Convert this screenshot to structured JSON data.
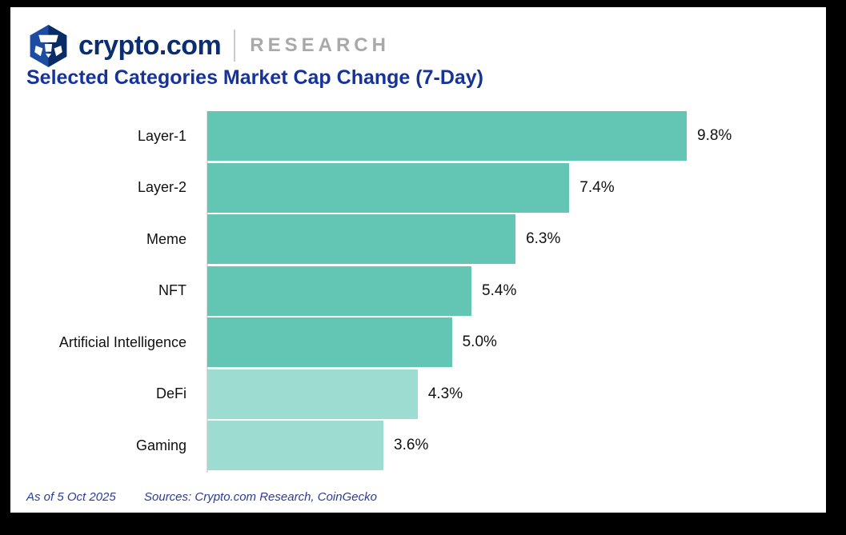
{
  "header": {
    "brand": "crypto.com",
    "brand_suffix": "RESEARCH",
    "logo_icon": "crypto-com-hexagon-logo"
  },
  "title": "Selected Categories Market Cap Change (7-Day)",
  "footer": {
    "as_of": "As of 5 Oct 2025",
    "sources": "Sources: Crypto.com Research, CoinGecko"
  },
  "colors": {
    "brand_navy": "#0C2E6F",
    "logo_blue_light": "#1C4DA2",
    "logo_blue_dark": "#0A2C66",
    "title_blue": "#16339B",
    "research_gray": "#A9A9A9",
    "footer_blue": "#2D3C96",
    "axis_gray": "#DCDCDC",
    "bar_teal": "#63C5B4",
    "bar_light_teal": "#9DDCD0",
    "value_text": "#111111"
  },
  "chart_data": {
    "type": "bar",
    "orientation": "horizontal",
    "title": "Selected Categories Market Cap Change (7-Day)",
    "categories": [
      "Layer-1",
      "Layer-2",
      "Meme",
      "NFT",
      "Artificial Intelligence",
      "DeFi",
      "Gaming"
    ],
    "values": [
      9.8,
      7.4,
      6.3,
      5.4,
      5.0,
      4.3,
      3.6
    ],
    "value_labels": [
      "9.8%",
      "7.4%",
      "6.3%",
      "5.4%",
      "5.0%",
      "4.3%",
      "3.6%"
    ],
    "bar_colors": [
      "#63C5B4",
      "#63C5B4",
      "#63C5B4",
      "#63C5B4",
      "#63C5B4",
      "#9DDCD0",
      "#9DDCD0"
    ],
    "unit": "%",
    "xlim": [
      0,
      9.8
    ],
    "grid": false,
    "legend": false,
    "value_label_position": "right-of-bar"
  }
}
